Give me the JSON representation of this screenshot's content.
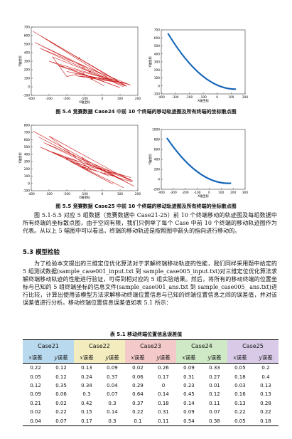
{
  "figures": [
    {
      "caption": "图 5.4  竞赛数据 Case24 中前 10 个终端的移动轨迹图及所有终端的坐标散点图",
      "left": {
        "xticks": [
          "-400",
          "-300",
          "-200",
          "-100",
          "0",
          "100",
          "200"
        ],
        "yticks": [
          "700",
          "600",
          "500",
          "400",
          "300",
          "200",
          "100",
          "0",
          "-100"
        ],
        "xlabel": "X轴坐标",
        "ylabel": "Y轴坐标"
      },
      "right": {
        "xticks": [
          "-400",
          "-300",
          "-200",
          "-100",
          "0",
          "100",
          "200"
        ],
        "yticks": [
          "700",
          "600",
          "500",
          "400",
          "300",
          "200",
          "100",
          "0",
          "-100"
        ],
        "xlabel": "X轴坐标",
        "ylabel": "Y轴坐标"
      }
    },
    {
      "caption": "图 5.5  竞赛数据 Case25 中前 10 个终端的移动轨迹图及所有终端的坐标散点图",
      "left": {
        "xticks": [
          "-400",
          "-300",
          "-200",
          "-100",
          "0",
          "100",
          "200"
        ],
        "yticks": [
          "800",
          "700",
          "600",
          "500",
          "400",
          "300",
          "200",
          "100",
          "0",
          "-100"
        ],
        "xlabel": "X轴坐标",
        "ylabel": "Y轴坐标"
      },
      "right": {
        "xticks": [
          "-400",
          "-300",
          "-200",
          "-100",
          "0",
          "100",
          "200",
          "300"
        ],
        "yticks": [
          "1000",
          "800",
          "600",
          "400",
          "200",
          "0",
          "-200"
        ],
        "xlabel": "X轴坐标",
        "ylabel": "Y轴坐标"
      }
    }
  ],
  "para1": "图 5.1-5.5 对应 5 组数据（竞赛数据中 Case21-25）前 10 个终端移动的轨迹图及每组数据中所有终端的坐标散点图，由于空间有限，我们只例举了每个 Case 中前 10 个终端的移动轨迹图作为代表。从以上 5 幅图中可以看出，终端的移动轨迹是按照图中箭头的指向进行移动的。",
  "section_heading": "5.3 模型检验",
  "para2": "为了检验本文提出的三维定位优化算法对于求解终端移动轨迹的性能，我们同样采用题中给定的 5 组测试数据(sample_case001_input.txt 到 sample_case005_input.txt)对三维定位优化算法求解终端移动轨迹的性能进行验证，可得到相对应的 5 组实验结果。然后，将所有的移动终端的位置坐标与已知的 5 组终端坐标的信息文件(sample_case001_ans.txt 到 sample_case005_ ans.txt)进行比较，计算出使用该模型方法求解移动终端位置信息与已知的终端位置信息之间的误差值，并对该误差值进行分析。移动终端位置信息误差值如表 5.1 所示：",
  "table": {
    "caption": "表 5.1  移动终端位置信息误差值",
    "groups": [
      "Case21",
      "Case22",
      "Case23",
      "Case24",
      "Case25"
    ],
    "x_label": "误差",
    "y_label": "误差",
    "rows": [
      [
        "0.22",
        "0.12",
        "0.13",
        "0.09",
        "0.02",
        "0.26",
        "0.09",
        "0.33",
        "0.05",
        "0.2"
      ],
      [
        "0.05",
        "0.12",
        "0.24",
        "0.37",
        "0.06",
        "0.17",
        "0.31",
        "0.27",
        "0.18",
        "0.4"
      ],
      [
        "0.12",
        "0.35",
        "0.34",
        "0.04",
        "0.29",
        "0",
        "0.23",
        "0.01",
        "0.03",
        "0.13"
      ],
      [
        "0.09",
        "0.06",
        "0.3",
        "0.07",
        "0.64",
        "0.14",
        "0.45",
        "0.12",
        "0.16",
        "0.13"
      ],
      [
        "0.21",
        "0.02",
        "0.42",
        "0.3",
        "0.37",
        "0.18",
        "0.14",
        "0.11",
        "0.13",
        "0.28"
      ],
      [
        "0.02",
        "0.22",
        "0.15",
        "0.14",
        "0.22",
        "0.31",
        "0.09",
        "0.07",
        "0.22",
        "0.22"
      ],
      [
        "0.04",
        "0.07",
        "0.17",
        "0.3",
        "0.1",
        "0.11",
        "0.54",
        "0.38",
        "0.05",
        "0.18"
      ]
    ]
  },
  "colors": {
    "trajectory": "#cc2222",
    "scatter": "#1565b8",
    "group_bg": [
      "#b9d9ee",
      "#f3ecbf",
      "#f3c9c9",
      "#cfe9c6",
      "#d9cbe8"
    ]
  }
}
